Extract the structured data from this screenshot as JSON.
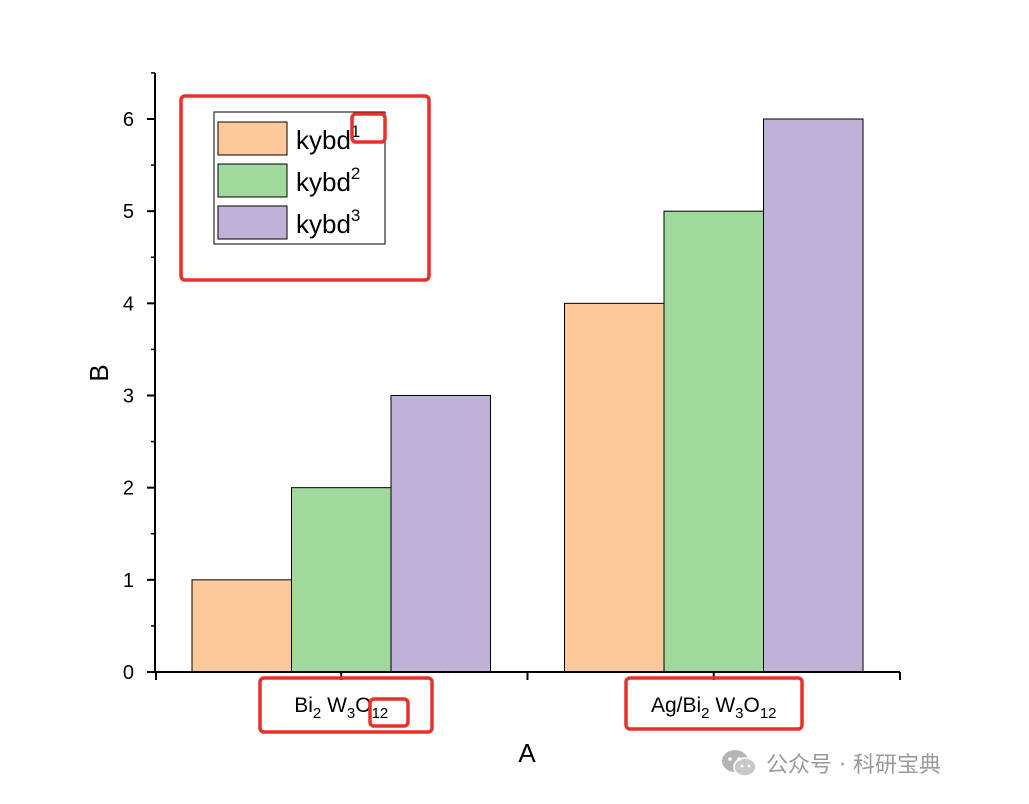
{
  "chart_data": {
    "type": "bar",
    "categories": [
      {
        "text": "Bi",
        "sub1": "2",
        "mid": " W",
        "sub2": "3",
        "mid2": "O",
        "sub3": "12"
      },
      {
        "text": "Ag/Bi",
        "sub1": "2",
        "mid": " W",
        "sub2": "3",
        "mid2": "O",
        "sub3": "12"
      }
    ],
    "series": [
      {
        "name": "kybd",
        "sup": "1",
        "values": [
          1,
          4
        ],
        "color": "#FDC89A"
      },
      {
        "name": "kybd",
        "sup": "2",
        "values": [
          2,
          5
        ],
        "color": "#A0D89E"
      },
      {
        "name": "kybd",
        "sup": "3",
        "values": [
          3,
          6
        ],
        "color": "#C0B2D6"
      }
    ],
    "xlabel": "A",
    "ylabel": "B",
    "ylim": [
      0,
      6.5
    ],
    "yticks": [
      0,
      1,
      2,
      3,
      4,
      5,
      6
    ],
    "legend_position": "top-left",
    "grid": false
  },
  "annotation_color": "#E8302A",
  "watermark": {
    "text": "公众号 · 科研宝典",
    "icon": "wechat-icon"
  }
}
